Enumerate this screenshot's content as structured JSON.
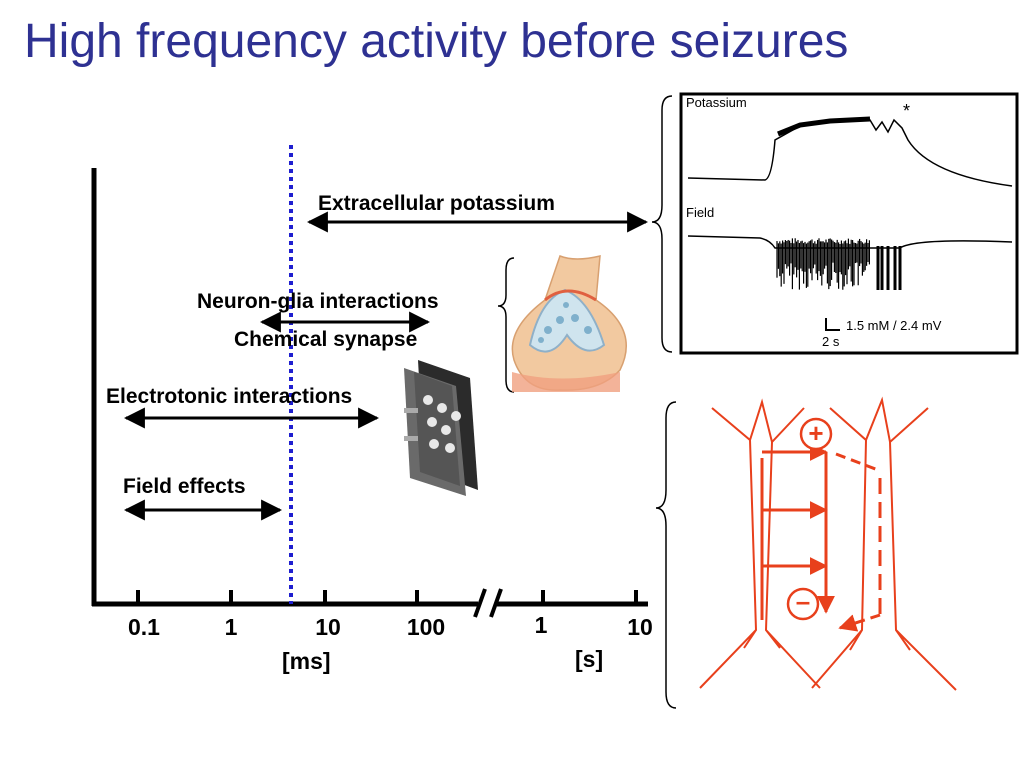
{
  "title": "High frequency activity before seizures",
  "timeline": {
    "ms_ticks": [
      "0.1",
      "1",
      "10",
      "100"
    ],
    "s_ticks": [
      "1",
      "10"
    ],
    "ms_unit": "[ms]",
    "s_unit": "[s]"
  },
  "ranges": {
    "potassium": "Extracellular potassium",
    "neuron_glia": "Neuron-glia interactions",
    "chemical": "Chemical synapse",
    "electrotonic": "Electrotonic interactions",
    "field": "Field effects"
  },
  "recording": {
    "potassium_label": "Potassium",
    "field_label": "Field",
    "asterisk": "*",
    "scale_label": "1.5 mM / 2.4 mV",
    "time_label": "2 s"
  },
  "neurons": {
    "plus_sign": "+",
    "minus_sign": "–",
    "color": "#e8401c"
  },
  "colors": {
    "title": "#2e3192",
    "dotted_line": "#1f1fcf"
  }
}
